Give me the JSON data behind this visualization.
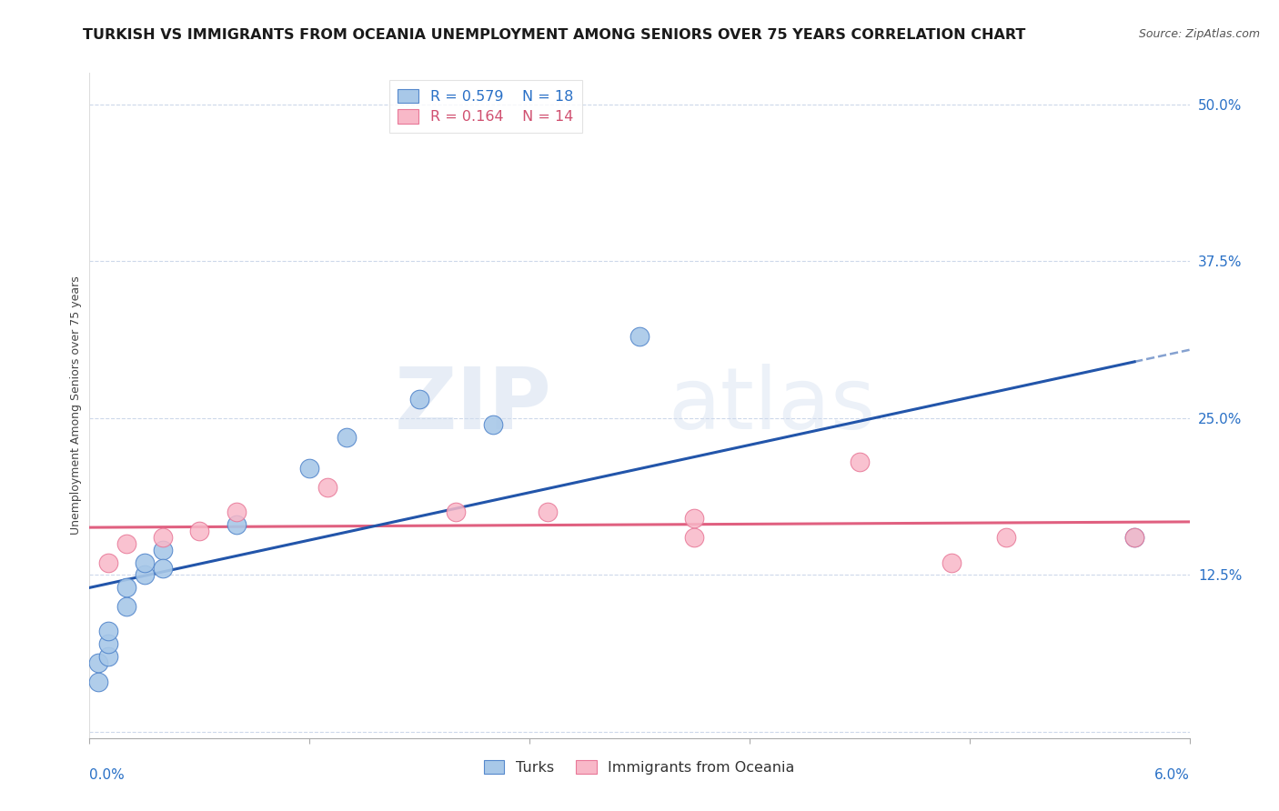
{
  "title": "TURKISH VS IMMIGRANTS FROM OCEANIA UNEMPLOYMENT AMONG SENIORS OVER 75 YEARS CORRELATION CHART",
  "source": "Source: ZipAtlas.com",
  "ylabel": "Unemployment Among Seniors over 75 years",
  "y_ticks": [
    0.0,
    0.125,
    0.25,
    0.375,
    0.5
  ],
  "y_tick_labels": [
    "",
    "12.5%",
    "25.0%",
    "37.5%",
    "50.0%"
  ],
  "x_range": [
    0.0,
    0.06
  ],
  "y_range": [
    -0.005,
    0.525
  ],
  "turks_R": "0.579",
  "turks_N": "18",
  "oceania_R": "0.164",
  "oceania_N": "14",
  "legend_label_1": "Turks",
  "legend_label_2": "Immigrants from Oceania",
  "turks_color": "#a8c8e8",
  "turks_edge_color": "#5588cc",
  "turks_line_color": "#2255aa",
  "oceania_color": "#f8b8c8",
  "oceania_edge_color": "#e87898",
  "oceania_line_color": "#e06080",
  "turks_x": [
    0.0005,
    0.0005,
    0.001,
    0.001,
    0.001,
    0.002,
    0.002,
    0.003,
    0.003,
    0.004,
    0.004,
    0.008,
    0.012,
    0.014,
    0.018,
    0.022,
    0.03,
    0.057
  ],
  "turks_y": [
    0.04,
    0.055,
    0.06,
    0.07,
    0.08,
    0.1,
    0.115,
    0.125,
    0.135,
    0.145,
    0.13,
    0.165,
    0.21,
    0.235,
    0.265,
    0.245,
    0.315,
    0.155
  ],
  "oceania_x": [
    0.001,
    0.002,
    0.004,
    0.006,
    0.008,
    0.013,
    0.02,
    0.025,
    0.033,
    0.033,
    0.042,
    0.047,
    0.05,
    0.057
  ],
  "oceania_y": [
    0.135,
    0.15,
    0.155,
    0.16,
    0.175,
    0.195,
    0.175,
    0.175,
    0.155,
    0.17,
    0.215,
    0.135,
    0.155,
    0.155
  ],
  "watermark_zip": "ZIP",
  "watermark_atlas": "atlas",
  "title_fontsize": 11.5,
  "source_fontsize": 9,
  "axis_label_fontsize": 9,
  "tick_fontsize": 11,
  "legend_fontsize": 11.5
}
